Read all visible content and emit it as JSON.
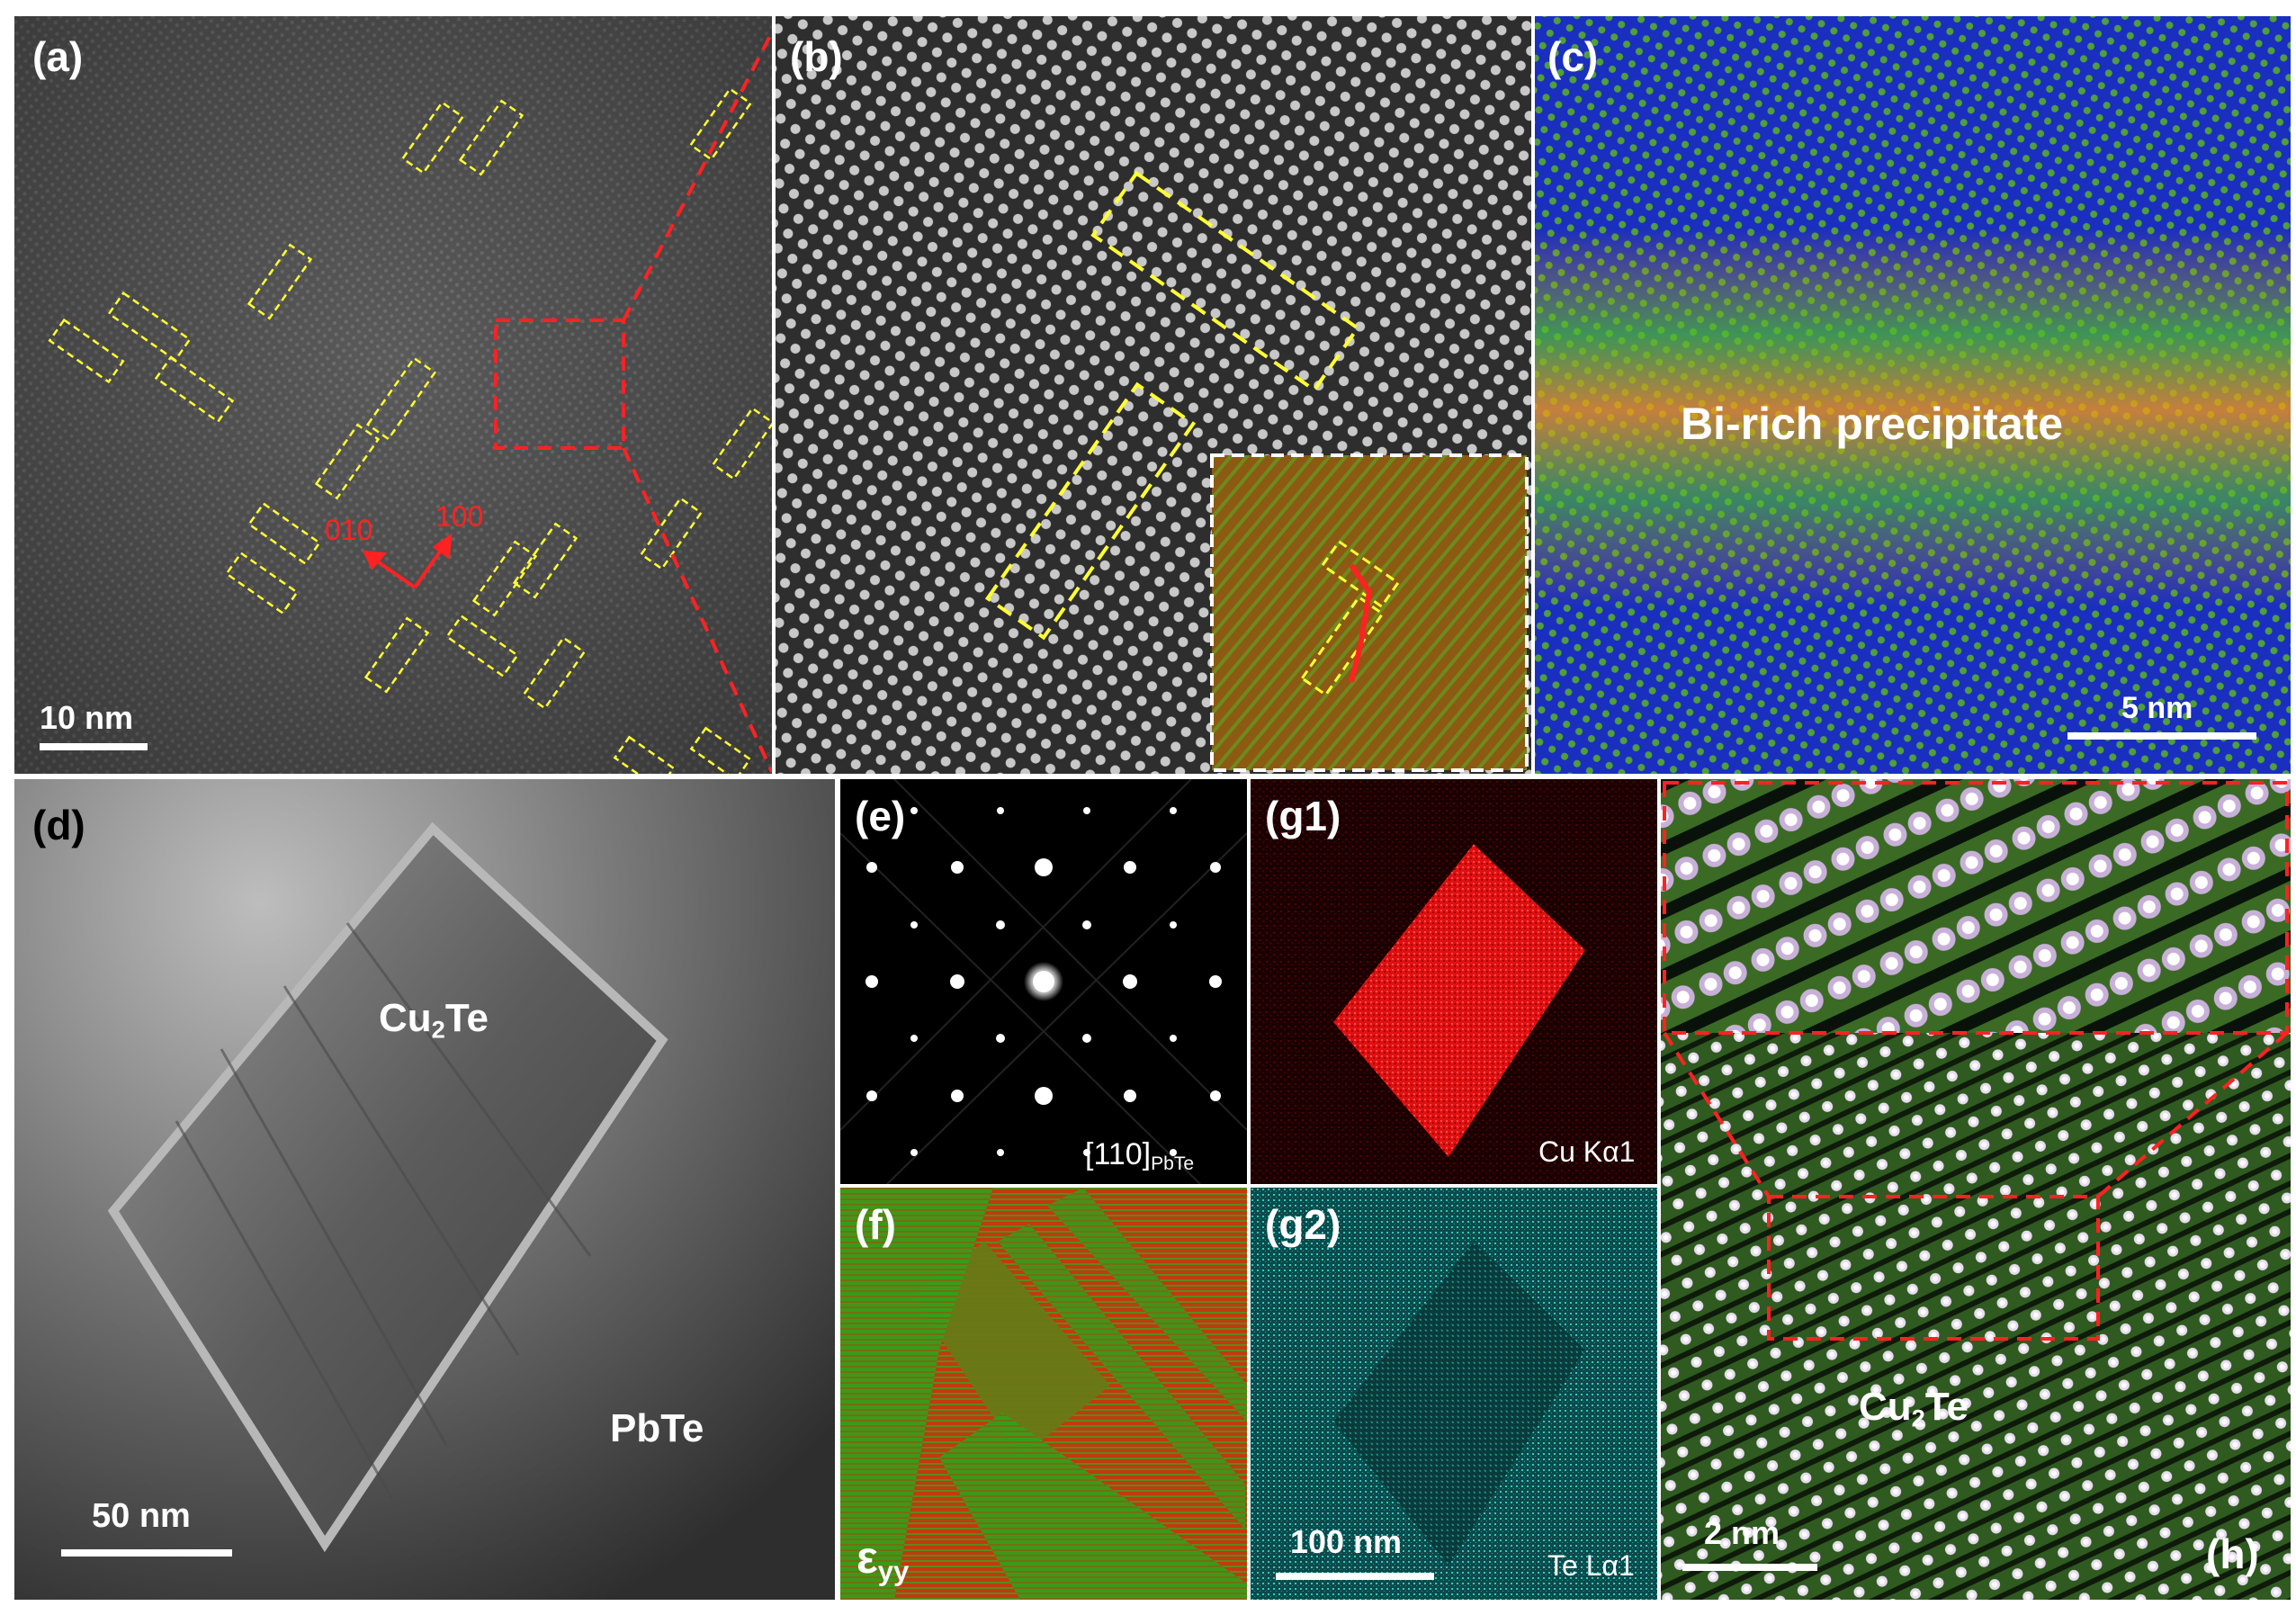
{
  "panels": {
    "a": {
      "label": "(a)",
      "scale_bar": "10 nm",
      "dir1": "010",
      "dir2": "100"
    },
    "b": {
      "label": "(b)"
    },
    "c": {
      "label": "(c)",
      "annotation": "Bi-rich precipitate",
      "scale_bar": "5 nm"
    },
    "d": {
      "label": "(d)",
      "phase1_main": "Cu",
      "phase1_sub": "2",
      "phase1_rest": "Te",
      "phase2": "PbTe",
      "scale_bar": "50 nm"
    },
    "e": {
      "label": "(e)",
      "zone_main": "[110]",
      "zone_sub": "PbTe"
    },
    "f": {
      "label": "(f)",
      "strain_main": "ε",
      "strain_sub": "yy"
    },
    "g1": {
      "label": "(g1)",
      "element": "Cu Kα1"
    },
    "g2": {
      "label": "(g2)",
      "element": "Te Lα1",
      "scale_bar": "100 nm"
    },
    "h": {
      "label": "(h)",
      "phase_main": "Cu",
      "phase_sub": "2",
      "phase_rest": "Te",
      "scale_bar": "2 nm"
    }
  },
  "colors": {
    "box_yellow": "#ffff33",
    "box_red": "#ff2222",
    "cu_map": "#ff1a1a",
    "te_map": "#20c8c8",
    "strain_red": "#c13a10",
    "strain_green": "#2ea21a"
  }
}
